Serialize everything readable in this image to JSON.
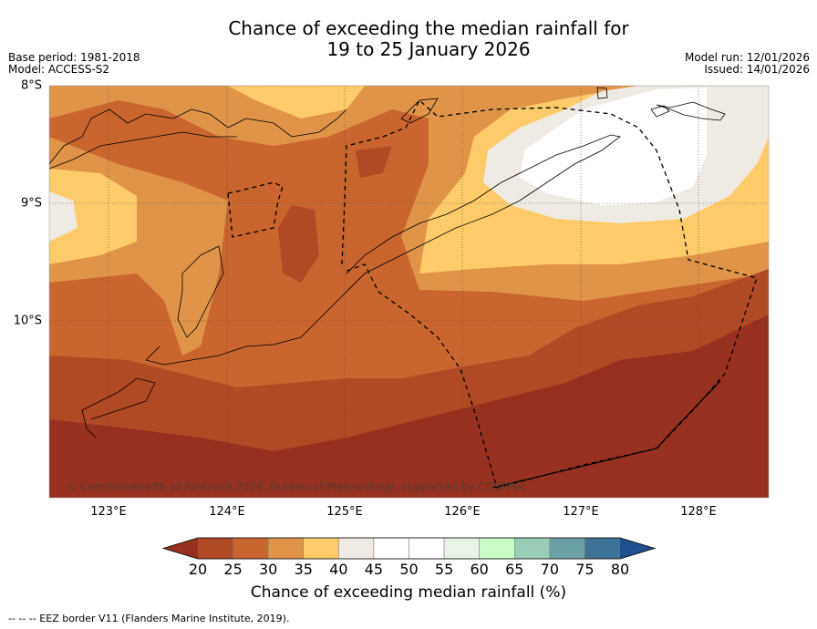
{
  "title": {
    "line1": "Chance of exceeding the median rainfall for",
    "line2": "19 to 25 January 2026"
  },
  "meta_left": {
    "base_period": "Base period: 1981-2018",
    "model": "Model: ACCESS-S2"
  },
  "meta_right": {
    "model_run": "Model run: 12/01/2026",
    "issued": "Issued: 14/01/2026"
  },
  "axes": {
    "lat_labels": [
      "8°S",
      "9°S",
      "10°S"
    ],
    "lon_labels": [
      "123°E",
      "124°E",
      "125°E",
      "126°E",
      "127°E",
      "128°E"
    ]
  },
  "copyright": "© Commonwealth of Australia 2026, Bureau of Meteorology, supported by COSPPac",
  "colorbar": {
    "ticks": [
      "20",
      "25",
      "30",
      "35",
      "40",
      "45",
      "50",
      "55",
      "60",
      "65",
      "70",
      "75",
      "80"
    ],
    "colors": [
      "#b04a24",
      "#c9662f",
      "#e0944a",
      "#fecb6a",
      "#efebe4",
      "#ffffff",
      "#ffffff",
      "#e8f5e6",
      "#c9fcc8",
      "#99cdb7",
      "#6ba1a4",
      "#3e7398"
    ],
    "under_color": "#96301f",
    "over_color": "#1f4f8f",
    "title": "Chance of exceeding median rainfall (%)"
  },
  "footnote": "--  --  -- EEZ border V11 (Flanders Marine Institute, 2019).",
  "map_colors": {
    "c15": "#96301f",
    "c20": "#b04a24",
    "c25": "#c9662f",
    "c30": "#e0944a",
    "c35": "#fecb6a",
    "c40": "#efebe4",
    "c50": "#ffffff"
  }
}
